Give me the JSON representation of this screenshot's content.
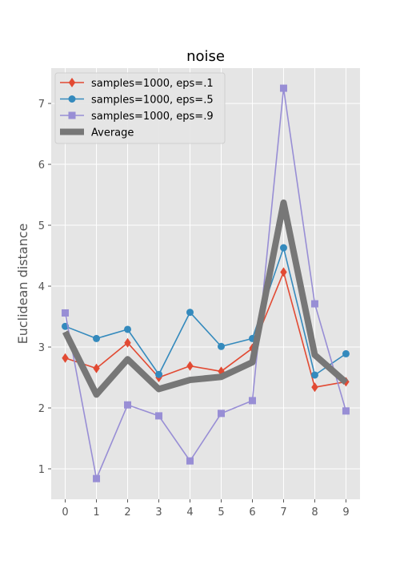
{
  "chart_data": {
    "type": "line",
    "title": "noise",
    "xlabel": "",
    "ylabel": "Euclidean distance",
    "x": [
      0,
      1,
      2,
      3,
      4,
      5,
      6,
      7,
      8,
      9
    ],
    "xlim": [
      -0.45,
      9.45
    ],
    "ylim": [
      0.5,
      7.58
    ],
    "xticks": [
      0,
      1,
      2,
      3,
      4,
      5,
      6,
      7,
      8,
      9
    ],
    "yticks": [
      1,
      2,
      3,
      4,
      5,
      6,
      7
    ],
    "grid": true,
    "legend_position": "top-left",
    "series": [
      {
        "name": "samples=1000, eps=.1",
        "color": "#E24A33",
        "marker": "diamond",
        "values": [
          2.82,
          2.65,
          3.07,
          2.5,
          2.69,
          2.6,
          2.98,
          4.23,
          2.34,
          2.43
        ]
      },
      {
        "name": "samples=1000, eps=.5",
        "color": "#348ABD",
        "marker": "circle",
        "values": [
          3.34,
          3.14,
          3.29,
          2.55,
          3.57,
          3.01,
          3.14,
          4.63,
          2.54,
          2.89
        ]
      },
      {
        "name": "samples=1000, eps=.9",
        "color": "#988ED5",
        "marker": "square",
        "values": [
          3.56,
          0.84,
          2.05,
          1.87,
          1.13,
          1.91,
          2.12,
          7.25,
          3.71,
          1.95
        ]
      },
      {
        "name": "Average",
        "color": "#777777",
        "marker": "none",
        "thick": true,
        "values": [
          3.25,
          2.22,
          2.8,
          2.31,
          2.46,
          2.51,
          2.75,
          5.37,
          2.87,
          2.42
        ]
      }
    ]
  }
}
